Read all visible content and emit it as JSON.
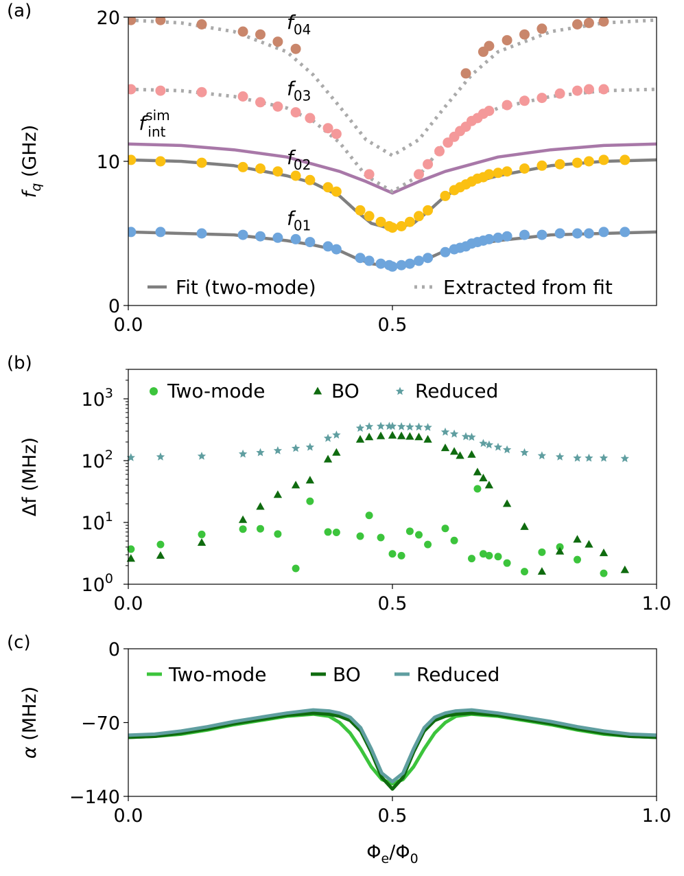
{
  "chart_data": [
    {
      "panel_label": "(a)",
      "type": "scatter",
      "xlim": [
        0,
        1
      ],
      "ylim": [
        0,
        20
      ],
      "ylabel": "f_q (GHz)",
      "xticks": [
        0,
        0.5
      ],
      "xtick_labels": [
        "0.0",
        "0.5"
      ],
      "yticks": [
        0,
        10,
        20
      ],
      "ytick_labels": [
        "0",
        "10",
        "20"
      ],
      "annotations": [
        {
          "text": "f",
          "sub": "04",
          "x": 0.3,
          "y": 19.2
        },
        {
          "text": "f",
          "sub": "03",
          "x": 0.3,
          "y": 14.6
        },
        {
          "text": "f",
          "sub": "02",
          "x": 0.3,
          "y": 9.8
        },
        {
          "text": "f",
          "sub": "01",
          "x": 0.3,
          "y": 5.6
        },
        {
          "text": "f",
          "sub": "int",
          "sup": "sim",
          "x": 0.02,
          "y": 12.2
        }
      ],
      "legend": [
        {
          "label": "Fit (two-mode)",
          "style": "solid",
          "color": "#7f7f7f"
        },
        {
          "label": "Extracted from fit",
          "style": "dotted",
          "color": "#aaaaaa"
        }
      ],
      "curves": [
        {
          "name": "f_int_sim",
          "color": "#a878a8",
          "style": "solid",
          "x": [
            0,
            0.1,
            0.2,
            0.3,
            0.4,
            0.45,
            0.5,
            0.55,
            0.6,
            0.7,
            0.8,
            0.9,
            1.0
          ],
          "y": [
            11.2,
            11.1,
            10.8,
            10.3,
            9.3,
            8.6,
            7.8,
            8.6,
            9.3,
            10.3,
            10.8,
            11.1,
            11.2
          ]
        },
        {
          "name": "f02_fit",
          "color": "#7f7f7f",
          "style": "solid",
          "x": [
            0,
            0.1,
            0.2,
            0.3,
            0.35,
            0.4,
            0.43,
            0.46,
            0.5,
            0.54,
            0.57,
            0.6,
            0.65,
            0.7,
            0.8,
            0.9,
            1.0
          ],
          "y": [
            10.1,
            10.0,
            9.7,
            9.0,
            8.5,
            7.6,
            6.6,
            5.7,
            5.3,
            5.7,
            6.6,
            7.6,
            8.5,
            9.0,
            9.7,
            10.0,
            10.1
          ]
        },
        {
          "name": "f01_fit",
          "color": "#7f7f7f",
          "style": "solid",
          "x": [
            0,
            0.1,
            0.2,
            0.3,
            0.35,
            0.4,
            0.43,
            0.46,
            0.5,
            0.54,
            0.57,
            0.6,
            0.65,
            0.7,
            0.8,
            0.9,
            1.0
          ],
          "y": [
            5.1,
            5.0,
            4.9,
            4.5,
            4.2,
            3.8,
            3.3,
            2.9,
            2.7,
            2.9,
            3.3,
            3.8,
            4.2,
            4.5,
            4.9,
            5.0,
            5.1
          ]
        },
        {
          "name": "f04_extracted",
          "color": "#aaaaaa",
          "style": "dotted",
          "x": [
            0,
            0.1,
            0.2,
            0.3,
            0.35,
            0.4,
            0.45,
            0.5,
            0.55,
            0.6,
            0.65,
            0.7,
            0.8,
            0.9,
            1.0
          ],
          "y": [
            19.8,
            19.6,
            19.0,
            17.6,
            16.0,
            13.8,
            11.5,
            10.4,
            11.5,
            13.8,
            16.0,
            17.6,
            19.0,
            19.6,
            19.8
          ]
        },
        {
          "name": "f03_extracted",
          "color": "#aaaaaa",
          "style": "dotted",
          "x": [
            0,
            0.1,
            0.2,
            0.3,
            0.35,
            0.4,
            0.45,
            0.5,
            0.55,
            0.6,
            0.65,
            0.7,
            0.8,
            0.9,
            1.0
          ],
          "y": [
            15.0,
            14.9,
            14.5,
            13.7,
            12.8,
            11.3,
            9.0,
            7.9,
            9.0,
            11.3,
            12.8,
            13.7,
            14.5,
            14.9,
            15.0
          ]
        }
      ],
      "series": [
        {
          "name": "f04",
          "color": "#c9866b",
          "x": [
            0.005,
            0.061,
            0.139,
            0.217,
            0.25,
            0.283,
            0.317,
            0.639,
            0.672,
            0.683,
            0.717,
            0.75,
            0.783,
            0.85,
            0.872,
            0.9
          ],
          "y": [
            19.8,
            19.8,
            19.5,
            19.0,
            18.8,
            18.3,
            17.8,
            16.1,
            17.6,
            18.0,
            18.4,
            18.8,
            19.2,
            19.5,
            19.6,
            19.7
          ]
        },
        {
          "name": "f03",
          "color": "#f4999a",
          "x": [
            0.005,
            0.061,
            0.139,
            0.217,
            0.25,
            0.283,
            0.317,
            0.344,
            0.378,
            0.394,
            0.456,
            0.55,
            0.567,
            0.589,
            0.605,
            0.617,
            0.628,
            0.639,
            0.65,
            0.661,
            0.672,
            0.683,
            0.717,
            0.75,
            0.783,
            0.817,
            0.85,
            0.872,
            0.9
          ],
          "y": [
            15.0,
            14.9,
            14.8,
            14.5,
            14.1,
            13.8,
            13.4,
            13.0,
            12.3,
            11.9,
            9.1,
            9.1,
            9.8,
            10.7,
            11.3,
            11.7,
            12.1,
            12.4,
            12.8,
            13.0,
            13.3,
            13.5,
            13.9,
            14.2,
            14.4,
            14.7,
            14.9,
            15.0,
            15.0
          ]
        },
        {
          "name": "f02",
          "color": "#fbc012",
          "x": [
            0.005,
            0.061,
            0.139,
            0.217,
            0.25,
            0.283,
            0.317,
            0.344,
            0.378,
            0.394,
            0.439,
            0.456,
            0.478,
            0.494,
            0.5,
            0.517,
            0.533,
            0.55,
            0.567,
            0.6,
            0.617,
            0.628,
            0.639,
            0.65,
            0.661,
            0.672,
            0.683,
            0.7,
            0.717,
            0.75,
            0.783,
            0.817,
            0.85,
            0.872,
            0.9,
            0.94
          ],
          "y": [
            10.1,
            10.0,
            9.9,
            9.6,
            9.5,
            9.3,
            9.0,
            8.7,
            8.2,
            7.9,
            6.6,
            6.2,
            5.8,
            5.5,
            5.4,
            5.5,
            5.8,
            6.2,
            6.6,
            7.6,
            8.0,
            8.2,
            8.4,
            8.6,
            8.8,
            8.9,
            9.1,
            9.2,
            9.3,
            9.5,
            9.7,
            9.8,
            9.9,
            10.0,
            10.1,
            10.1
          ]
        },
        {
          "name": "f01",
          "color": "#6ea5dc",
          "x": [
            0.005,
            0.061,
            0.139,
            0.217,
            0.25,
            0.283,
            0.317,
            0.344,
            0.378,
            0.394,
            0.439,
            0.456,
            0.478,
            0.494,
            0.5,
            0.517,
            0.533,
            0.55,
            0.567,
            0.6,
            0.617,
            0.628,
            0.639,
            0.65,
            0.661,
            0.672,
            0.683,
            0.7,
            0.717,
            0.75,
            0.783,
            0.817,
            0.85,
            0.872,
            0.9,
            0.94
          ],
          "y": [
            5.1,
            5.1,
            5.0,
            4.9,
            4.8,
            4.7,
            4.6,
            4.4,
            4.1,
            3.9,
            3.3,
            3.1,
            2.9,
            2.8,
            2.7,
            2.8,
            2.9,
            3.1,
            3.3,
            3.7,
            3.9,
            4.0,
            4.1,
            4.3,
            4.4,
            4.5,
            4.6,
            4.7,
            4.8,
            4.9,
            4.9,
            5.0,
            5.0,
            5.0,
            5.1,
            5.1
          ]
        }
      ]
    },
    {
      "panel_label": "(b)",
      "type": "scatter",
      "xlim": [
        0,
        1
      ],
      "ylim": [
        1,
        3000
      ],
      "yscale": "log",
      "ylabel": "Δf (MHz)",
      "xticks": [
        0,
        0.5,
        1.0
      ],
      "xtick_labels": [
        "0.0",
        "0.5",
        "1.0"
      ],
      "yticks": [
        1,
        10,
        100,
        1000
      ],
      "ytick_labels": [
        "10",
        "10",
        "10",
        "10"
      ],
      "ytick_exponents": [
        "0",
        "1",
        "2",
        "3"
      ],
      "legend": [
        {
          "label": "Two-mode",
          "marker": "circle",
          "color": "#3cc43c"
        },
        {
          "label": "BO",
          "marker": "triangle",
          "color": "#0f6b0f"
        },
        {
          "label": "Reduced",
          "marker": "star",
          "color": "#5f9ea0"
        }
      ],
      "series": [
        {
          "name": "Two-mode",
          "marker": "circle",
          "color": "#3cc43c",
          "x": [
            0.005,
            0.061,
            0.139,
            0.217,
            0.25,
            0.283,
            0.317,
            0.344,
            0.378,
            0.394,
            0.439,
            0.456,
            0.478,
            0.5,
            0.517,
            0.533,
            0.55,
            0.567,
            0.6,
            0.617,
            0.65,
            0.661,
            0.672,
            0.683,
            0.7,
            0.717,
            0.75,
            0.783,
            0.817,
            0.85,
            0.9
          ],
          "y": [
            3.7,
            4.4,
            6.4,
            7.8,
            7.9,
            6.5,
            1.8,
            22,
            7.0,
            6.9,
            6.0,
            13,
            5.7,
            3.1,
            2.9,
            7.2,
            6.3,
            4.4,
            8.0,
            5.1,
            2.6,
            35,
            3.1,
            2.9,
            2.8,
            2.2,
            1.6,
            3.3,
            4.0,
            2.5,
            1.5
          ]
        },
        {
          "name": "BO",
          "marker": "triangle",
          "color": "#0f6b0f",
          "x": [
            0.005,
            0.061,
            0.139,
            0.217,
            0.25,
            0.283,
            0.317,
            0.344,
            0.378,
            0.394,
            0.439,
            0.456,
            0.478,
            0.5,
            0.517,
            0.533,
            0.55,
            0.567,
            0.6,
            0.617,
            0.628,
            0.65,
            0.661,
            0.672,
            0.683,
            0.717,
            0.75,
            0.783,
            0.817,
            0.85,
            0.872,
            0.9,
            0.94
          ],
          "y": [
            2.6,
            2.9,
            4.7,
            11,
            18,
            28,
            40,
            48,
            105,
            135,
            220,
            240,
            250,
            255,
            250,
            245,
            240,
            220,
            160,
            140,
            120,
            125,
            65,
            52,
            40,
            20,
            8.5,
            1.6,
            3.4,
            5.3,
            4.4,
            3.2,
            1.7
          ]
        },
        {
          "name": "Reduced",
          "marker": "star",
          "color": "#5f9ea0",
          "x": [
            0.005,
            0.061,
            0.139,
            0.217,
            0.25,
            0.283,
            0.317,
            0.344,
            0.378,
            0.394,
            0.439,
            0.456,
            0.478,
            0.494,
            0.5,
            0.517,
            0.533,
            0.55,
            0.567,
            0.6,
            0.617,
            0.639,
            0.65,
            0.672,
            0.683,
            0.7,
            0.717,
            0.75,
            0.783,
            0.817,
            0.85,
            0.872,
            0.9,
            0.94
          ],
          "y": [
            112,
            115,
            118,
            128,
            135,
            145,
            158,
            165,
            230,
            260,
            335,
            355,
            360,
            360,
            360,
            355,
            350,
            350,
            345,
            290,
            270,
            245,
            240,
            190,
            180,
            165,
            150,
            135,
            120,
            115,
            110,
            110,
            110,
            108
          ]
        }
      ]
    },
    {
      "panel_label": "(c)",
      "type": "line",
      "xlim": [
        0,
        1
      ],
      "ylim": [
        -140,
        0
      ],
      "xlabel": "Φe/Φ0",
      "ylabel": "α (MHz)",
      "xticks": [
        0,
        0.5,
        1.0
      ],
      "xtick_labels": [
        "0.0",
        "0.5",
        "1.0"
      ],
      "yticks": [
        0,
        -70,
        -140
      ],
      "ytick_labels": [
        "0",
        "−70",
        "−140"
      ],
      "legend": [
        {
          "label": "Two-mode",
          "color": "#3cc43c"
        },
        {
          "label": "BO",
          "color": "#0f6b0f"
        },
        {
          "label": "Reduced",
          "color": "#5f9ea0"
        }
      ],
      "series": [
        {
          "name": "Two-mode",
          "color": "#3cc43c",
          "x": [
            0,
            0.05,
            0.1,
            0.15,
            0.2,
            0.25,
            0.3,
            0.35,
            0.38,
            0.4,
            0.42,
            0.44,
            0.46,
            0.48,
            0.5,
            0.52,
            0.54,
            0.56,
            0.58,
            0.6,
            0.62,
            0.65,
            0.7,
            0.75,
            0.8,
            0.85,
            0.9,
            0.95,
            1.0
          ],
          "y": [
            -84,
            -83,
            -81,
            -77,
            -72,
            -68,
            -64,
            -62,
            -64,
            -70,
            -80,
            -95,
            -112,
            -124,
            -128,
            -124,
            -112,
            -95,
            -80,
            -70,
            -64,
            -62,
            -64,
            -68,
            -72,
            -77,
            -81,
            -83,
            -84
          ]
        },
        {
          "name": "BO",
          "color": "#0f6b0f",
          "x": [
            0,
            0.05,
            0.1,
            0.15,
            0.2,
            0.25,
            0.3,
            0.35,
            0.38,
            0.4,
            0.42,
            0.44,
            0.46,
            0.48,
            0.5,
            0.52,
            0.54,
            0.56,
            0.58,
            0.6,
            0.62,
            0.65,
            0.7,
            0.75,
            0.8,
            0.85,
            0.9,
            0.95,
            1.0
          ],
          "y": [
            -84,
            -83,
            -80,
            -76,
            -71,
            -67,
            -63,
            -61,
            -62,
            -64,
            -68,
            -78,
            -98,
            -122,
            -133,
            -122,
            -98,
            -78,
            -68,
            -64,
            -62,
            -61,
            -63,
            -67,
            -71,
            -76,
            -80,
            -83,
            -84
          ]
        },
        {
          "name": "Reduced",
          "color": "#5f9ea0",
          "x": [
            0,
            0.05,
            0.1,
            0.15,
            0.2,
            0.25,
            0.3,
            0.35,
            0.38,
            0.4,
            0.42,
            0.44,
            0.46,
            0.48,
            0.5,
            0.52,
            0.54,
            0.56,
            0.58,
            0.6,
            0.62,
            0.65,
            0.7,
            0.75,
            0.8,
            0.85,
            0.9,
            0.95,
            1.0
          ],
          "y": [
            -82,
            -81,
            -78,
            -74,
            -69,
            -65,
            -61,
            -58,
            -59,
            -61,
            -65,
            -75,
            -95,
            -118,
            -126,
            -118,
            -95,
            -75,
            -65,
            -61,
            -59,
            -58,
            -61,
            -65,
            -69,
            -74,
            -78,
            -81,
            -82
          ]
        }
      ]
    }
  ]
}
